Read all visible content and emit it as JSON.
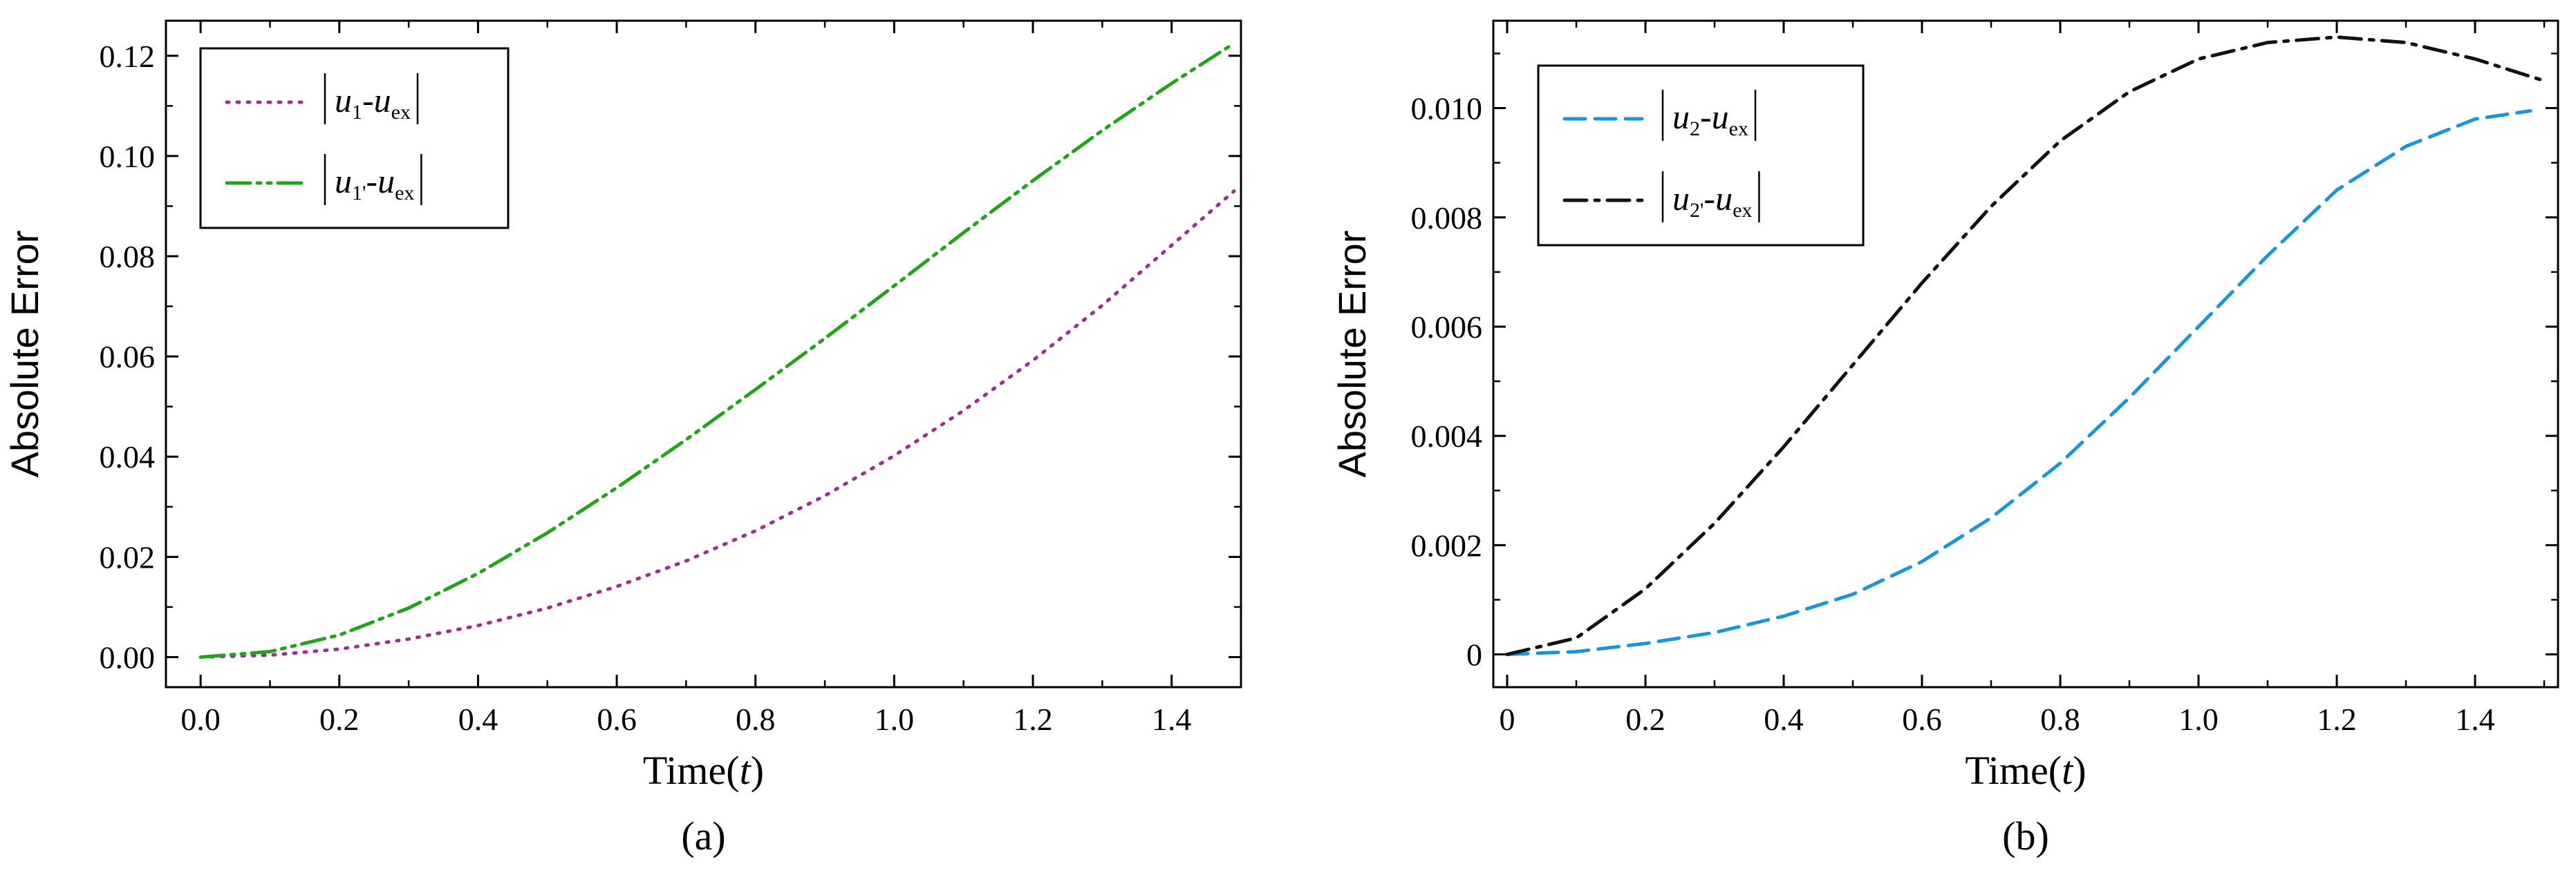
{
  "chart_data": [
    {
      "panel": "(a)",
      "type": "line",
      "xlabel": "Time(t)",
      "xlabel_prefix": "Time(",
      "xlabel_var": "t",
      "xlabel_suffix": ")",
      "ylabel": "Absolute Error",
      "xlim": [
        -0.05,
        1.5
      ],
      "ylim": [
        -0.006,
        0.127
      ],
      "xticks": [
        0.0,
        0.2,
        0.4,
        0.6,
        0.8,
        1.0,
        1.2,
        1.4
      ],
      "xtick_labels": [
        "0.0",
        "0.2",
        "0.4",
        "0.6",
        "0.8",
        "1.0",
        "1.2",
        "1.4"
      ],
      "yticks": [
        0.0,
        0.02,
        0.04,
        0.06,
        0.08,
        0.1,
        0.12
      ],
      "ytick_labels": [
        "0.00",
        "0.02",
        "0.04",
        "0.06",
        "0.08",
        "0.10",
        "0.12"
      ],
      "legend_position": "top-left",
      "series": [
        {
          "name": "|u1-uex|",
          "base": "u",
          "sub": "1",
          "minus": "-",
          "base2": "u",
          "sub2": "ex",
          "color": "#9b2f8f",
          "style": "dotted",
          "x": [
            0.0,
            0.1,
            0.2,
            0.3,
            0.4,
            0.5,
            0.6,
            0.7,
            0.8,
            0.9,
            1.0,
            1.1,
            1.2,
            1.3,
            1.4,
            1.49
          ],
          "y": [
            0.0,
            0.0004,
            0.0016,
            0.0036,
            0.0063,
            0.0098,
            0.0141,
            0.0192,
            0.0252,
            0.0322,
            0.0402,
            0.0492,
            0.0592,
            0.0702,
            0.0822,
            0.093
          ]
        },
        {
          "name": "|u1'-uex|",
          "base": "u",
          "sub": "1'",
          "minus": "-",
          "base2": "u",
          "sub2": "ex",
          "color": "#22a31a",
          "style": "dashdotdot",
          "x": [
            0.0,
            0.1,
            0.2,
            0.3,
            0.4,
            0.5,
            0.6,
            0.7,
            0.8,
            0.9,
            1.0,
            1.1,
            1.2,
            1.3,
            1.4,
            1.49
          ],
          "y": [
            0.0,
            0.0011,
            0.0044,
            0.0098,
            0.0167,
            0.0248,
            0.0338,
            0.0434,
            0.0534,
            0.0636,
            0.0741,
            0.0847,
            0.0951,
            0.1051,
            0.1145,
            0.1225
          ]
        }
      ]
    },
    {
      "panel": "(b)",
      "type": "line",
      "xlabel": "Time(t)",
      "xlabel_prefix": "Time(",
      "xlabel_var": "t",
      "xlabel_suffix": ")",
      "ylabel": "Absolute Error",
      "xlim": [
        -0.02,
        1.52
      ],
      "ylim": [
        -0.0006,
        0.0116
      ],
      "xticks": [
        0.0,
        0.2,
        0.4,
        0.6,
        0.8,
        1.0,
        1.2,
        1.4
      ],
      "xtick_labels": [
        "0",
        "0.2",
        "0.4",
        "0.6",
        "0.8",
        "1.0",
        "1.2",
        "1.4"
      ],
      "yticks": [
        0.0,
        0.002,
        0.004,
        0.006,
        0.008,
        0.01
      ],
      "ytick_labels": [
        "0",
        "0.002",
        "0.004",
        "0.006",
        "0.008",
        "0.010"
      ],
      "legend_position": "top-left",
      "series": [
        {
          "name": "|u2-uex|",
          "base": "u",
          "sub": "2",
          "minus": "-",
          "base2": "u",
          "sub2": "ex",
          "color": "#1a96d8",
          "style": "dashed",
          "x": [
            0.0,
            0.1,
            0.2,
            0.3,
            0.4,
            0.5,
            0.6,
            0.7,
            0.8,
            0.9,
            1.0,
            1.1,
            1.2,
            1.3,
            1.4,
            1.48
          ],
          "y": [
            0.0,
            5e-05,
            0.0002,
            0.0004,
            0.0007,
            0.0011,
            0.0017,
            0.0025,
            0.0035,
            0.0047,
            0.006,
            0.0073,
            0.0085,
            0.0093,
            0.0098,
            0.00995
          ]
        },
        {
          "name": "|u2'-uex|",
          "base": "u",
          "sub": "2'",
          "minus": "-",
          "base2": "u",
          "sub2": "ex",
          "color": "#111111",
          "style": "dashdot",
          "x": [
            0.0,
            0.1,
            0.2,
            0.3,
            0.4,
            0.5,
            0.6,
            0.7,
            0.8,
            0.9,
            1.0,
            1.1,
            1.2,
            1.3,
            1.4,
            1.5
          ],
          "y": [
            0.0,
            0.0003,
            0.0012,
            0.0024,
            0.0038,
            0.0053,
            0.0068,
            0.0082,
            0.0094,
            0.0103,
            0.0109,
            0.0112,
            0.0113,
            0.0112,
            0.0109,
            0.0105
          ]
        }
      ]
    }
  ]
}
